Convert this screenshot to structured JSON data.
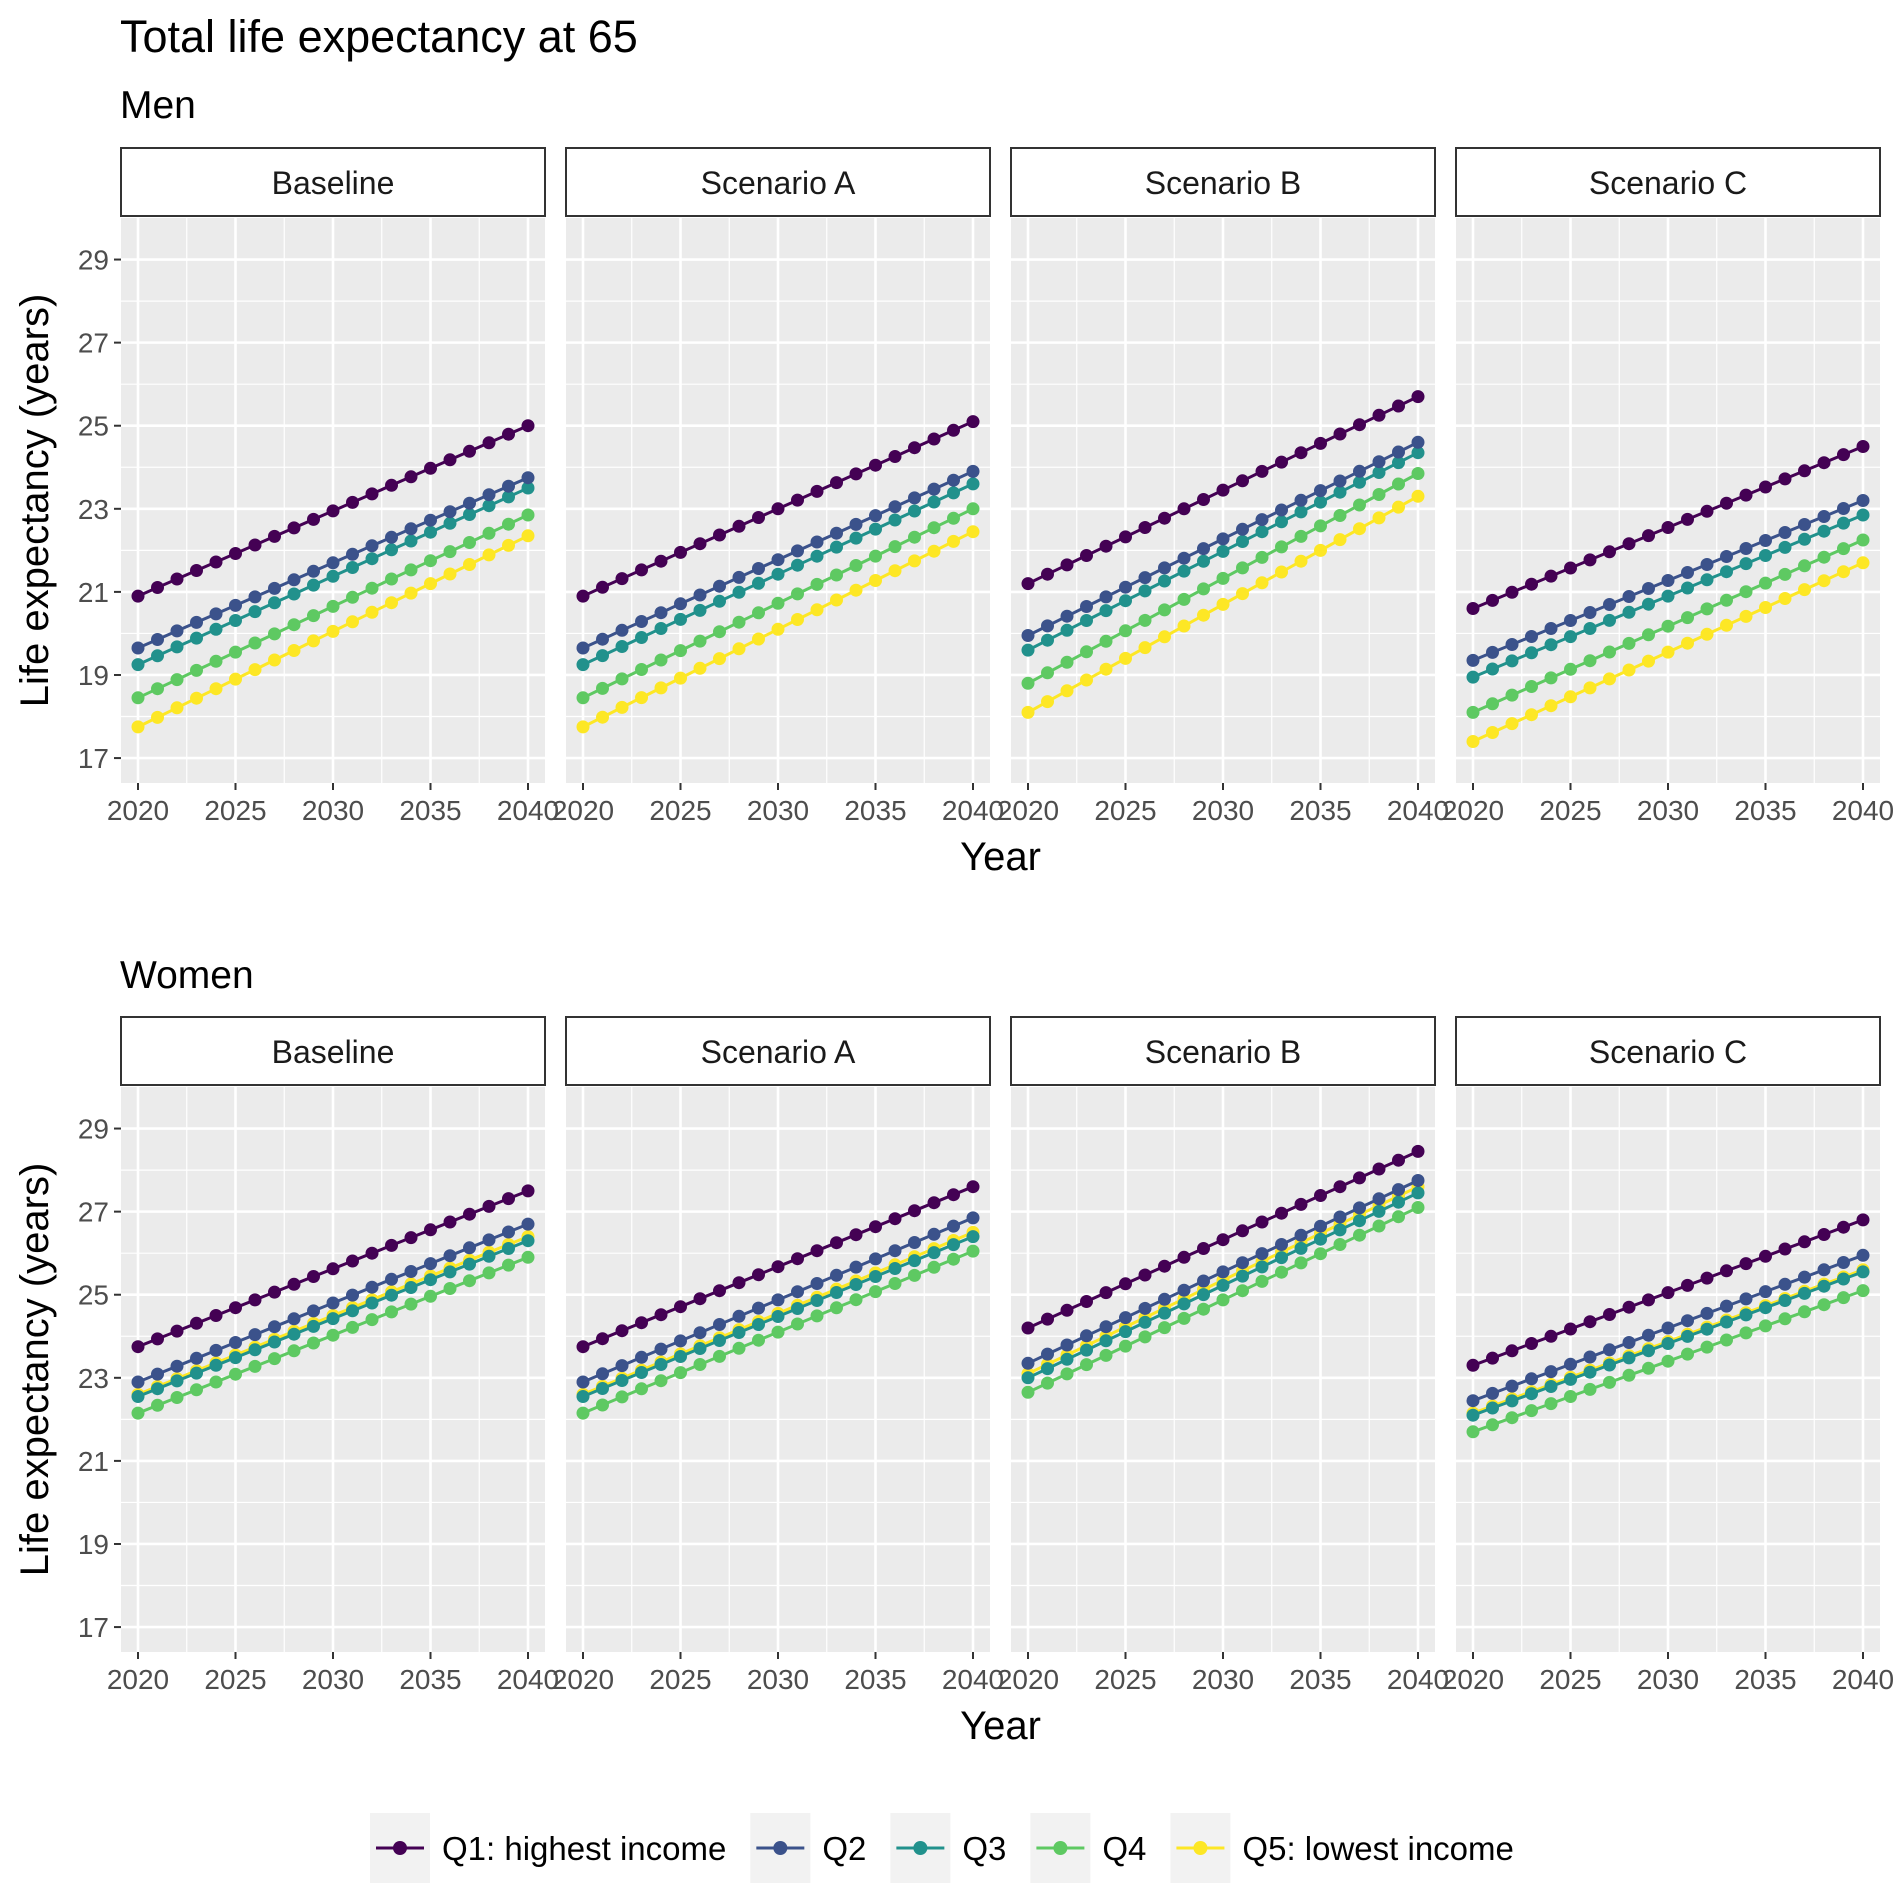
{
  "title": "Total life expectancy at 65",
  "legend": [
    {
      "label": "Q1: highest income",
      "color": "#440154"
    },
    {
      "label": "Q2",
      "color": "#3b528b"
    },
    {
      "label": "Q3",
      "color": "#21918c"
    },
    {
      "label": "Q4",
      "color": "#5ec962"
    },
    {
      "label": "Q5: lowest income",
      "color": "#fde725"
    }
  ],
  "chart_data": [
    {
      "type": "line",
      "subtitle": "Men",
      "xlabel": "Year",
      "ylabel": "Life expectancy (years)",
      "x_range": [
        2020,
        2040
      ],
      "ylim": [
        16.4,
        30.0
      ],
      "x_ticks": [
        2020,
        2025,
        2030,
        2035,
        2040
      ],
      "y_ticks": [
        17,
        19,
        21,
        23,
        25,
        27,
        29
      ],
      "panels": [
        {
          "name": "Baseline",
          "series": [
            {
              "name": "Q1: highest income",
              "start": 20.9,
              "end": 25.0
            },
            {
              "name": "Q2",
              "start": 19.65,
              "end": 23.75
            },
            {
              "name": "Q3",
              "start": 19.25,
              "end": 23.5
            },
            {
              "name": "Q4",
              "start": 18.45,
              "end": 22.85
            },
            {
              "name": "Q5: lowest income",
              "start": 17.75,
              "end": 22.35
            }
          ]
        },
        {
          "name": "Scenario A",
          "series": [
            {
              "name": "Q1: highest income",
              "start": 20.9,
              "end": 25.1
            },
            {
              "name": "Q2",
              "start": 19.65,
              "end": 23.9
            },
            {
              "name": "Q3",
              "start": 19.25,
              "end": 23.6
            },
            {
              "name": "Q4",
              "start": 18.45,
              "end": 23.0
            },
            {
              "name": "Q5: lowest income",
              "start": 17.75,
              "end": 22.45
            }
          ]
        },
        {
          "name": "Scenario B",
          "series": [
            {
              "name": "Q1: highest income",
              "start": 21.2,
              "end": 25.7
            },
            {
              "name": "Q2",
              "start": 19.95,
              "end": 24.6
            },
            {
              "name": "Q3",
              "start": 19.6,
              "end": 24.35
            },
            {
              "name": "Q4",
              "start": 18.8,
              "end": 23.85
            },
            {
              "name": "Q5: lowest income",
              "start": 18.1,
              "end": 23.3
            }
          ]
        },
        {
          "name": "Scenario C",
          "series": [
            {
              "name": "Q1: highest income",
              "start": 20.6,
              "end": 24.5
            },
            {
              "name": "Q2",
              "start": 19.35,
              "end": 23.2
            },
            {
              "name": "Q3",
              "start": 18.95,
              "end": 22.85
            },
            {
              "name": "Q4",
              "start": 18.1,
              "end": 22.25
            },
            {
              "name": "Q5: lowest income",
              "start": 17.4,
              "end": 21.7
            }
          ]
        }
      ]
    },
    {
      "type": "line",
      "subtitle": "Women",
      "xlabel": "Year",
      "ylabel": "Life expectancy (years)",
      "x_range": [
        2020,
        2040
      ],
      "ylim": [
        16.4,
        30.0
      ],
      "x_ticks": [
        2020,
        2025,
        2030,
        2035,
        2040
      ],
      "y_ticks": [
        17,
        19,
        21,
        23,
        25,
        27,
        29
      ],
      "panels": [
        {
          "name": "Baseline",
          "series": [
            {
              "name": "Q1: highest income",
              "start": 23.75,
              "end": 27.5
            },
            {
              "name": "Q2",
              "start": 22.9,
              "end": 26.7
            },
            {
              "name": "Q3",
              "start": 22.55,
              "end": 26.3
            },
            {
              "name": "Q4",
              "start": 22.15,
              "end": 25.9
            },
            {
              "name": "Q5: lowest income",
              "start": 22.6,
              "end": 26.4
            }
          ]
        },
        {
          "name": "Scenario A",
          "series": [
            {
              "name": "Q1: highest income",
              "start": 23.75,
              "end": 27.6
            },
            {
              "name": "Q2",
              "start": 22.9,
              "end": 26.85
            },
            {
              "name": "Q3",
              "start": 22.55,
              "end": 26.4
            },
            {
              "name": "Q4",
              "start": 22.15,
              "end": 26.05
            },
            {
              "name": "Q5: lowest income",
              "start": 22.6,
              "end": 26.5
            }
          ]
        },
        {
          "name": "Scenario B",
          "series": [
            {
              "name": "Q1: highest income",
              "start": 24.2,
              "end": 28.45
            },
            {
              "name": "Q2",
              "start": 23.35,
              "end": 27.75
            },
            {
              "name": "Q3",
              "start": 23.0,
              "end": 27.45
            },
            {
              "name": "Q4",
              "start": 22.65,
              "end": 27.1
            },
            {
              "name": "Q5: lowest income",
              "start": 23.1,
              "end": 27.6
            }
          ]
        },
        {
          "name": "Scenario C",
          "series": [
            {
              "name": "Q1: highest income",
              "start": 23.3,
              "end": 26.8
            },
            {
              "name": "Q2",
              "start": 22.45,
              "end": 25.95
            },
            {
              "name": "Q3",
              "start": 22.1,
              "end": 25.55
            },
            {
              "name": "Q4",
              "start": 21.7,
              "end": 25.1
            },
            {
              "name": "Q5: lowest income",
              "start": 22.15,
              "end": 25.6
            }
          ]
        }
      ]
    }
  ]
}
